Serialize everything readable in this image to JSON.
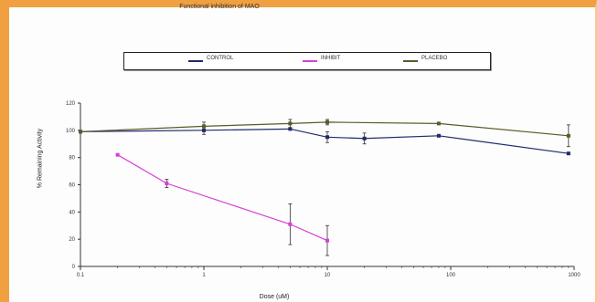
{
  "chart_data": {
    "type": "line",
    "title": "Functional inhibition of MAO",
    "xlabel": "Dose (uM)",
    "ylabel": "% Remaining Activity",
    "xscale": "log",
    "xlim": [
      0.1,
      1000
    ],
    "ylim": [
      0,
      120
    ],
    "xticks": [
      "0.1",
      "1",
      "10",
      "100",
      "1000"
    ],
    "yticks": [
      "0",
      "20",
      "40",
      "60",
      "80",
      "100",
      "120"
    ],
    "legend_position": "top",
    "series": [
      {
        "name": "CONTROL",
        "color": "#1f2a6b",
        "x": [
          0.1,
          1,
          5,
          10,
          20,
          80,
          900
        ],
        "y": [
          99,
          100,
          101,
          95,
          94,
          96,
          83
        ],
        "err": [
          0,
          3,
          0,
          4,
          4,
          0,
          0
        ]
      },
      {
        "name": "INHIBIT",
        "color": "#d63fd6",
        "x": [
          0.2,
          0.5,
          5,
          10
        ],
        "y": [
          82,
          61,
          31,
          19
        ],
        "err": [
          0,
          3,
          15,
          11
        ]
      },
      {
        "name": "PLACEBO",
        "color": "#5a5a2a",
        "x": [
          0.1,
          1,
          5,
          10,
          80,
          900
        ],
        "y": [
          99,
          103,
          105,
          106,
          105,
          96
        ],
        "err": [
          0,
          3,
          3,
          2,
          0,
          8
        ]
      }
    ]
  }
}
